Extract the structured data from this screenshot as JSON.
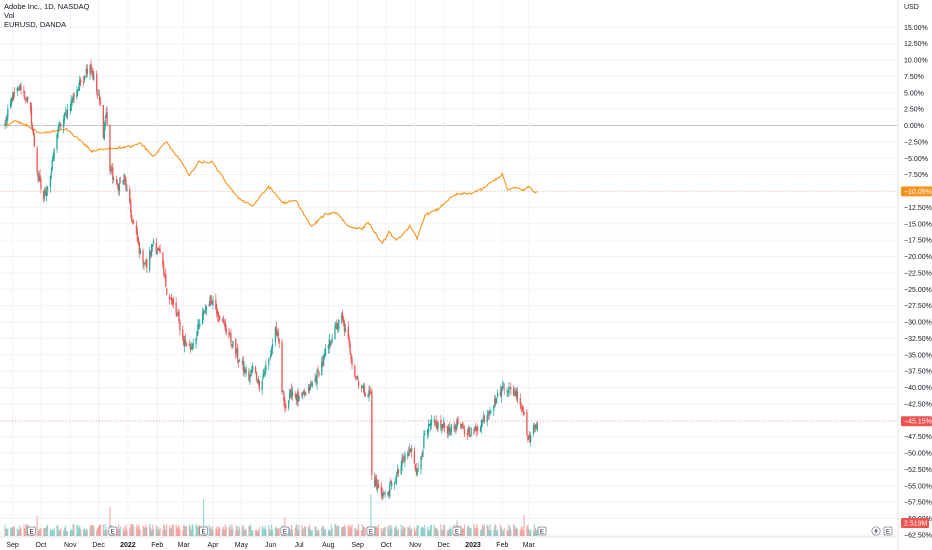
{
  "legend": {
    "line1": "Adobe Inc., 1D, NASDAQ",
    "line2": "Vol",
    "line3": "EURUSD, DANDA"
  },
  "currency": "USD",
  "colors": {
    "up": "#26a69a",
    "down": "#ef5350",
    "compare": "#f7941d",
    "grid": "#f0f3fa",
    "zero": "#b2b5be",
    "axis_text": "#131722"
  },
  "chart_data": {
    "type": "candlestick",
    "title": "Adobe Inc., 1D, NASDAQ",
    "ylabel": "",
    "y_scale": "percent change",
    "ylim": [
      -62.5,
      17.5
    ],
    "y_ticks": [
      "15.00%",
      "12.50%",
      "10.00%",
      "7.50%",
      "5.00%",
      "2.50%",
      "0.00%",
      "−2.50%",
      "−5.00%",
      "−7.50%",
      "−10.00%",
      "−12.50%",
      "−15.00%",
      "−17.50%",
      "−20.00%",
      "−22.50%",
      "−25.00%",
      "−27.50%",
      "−30.00%",
      "−32.50%",
      "−35.00%",
      "−37.50%",
      "−40.00%",
      "−42.50%",
      "−45.00%",
      "−47.50%",
      "−50.00%",
      "−52.50%",
      "−55.00%",
      "−57.50%",
      "−60.00%",
      "−62.50%"
    ],
    "x_labels": [
      {
        "text": "Sep",
        "bold": false
      },
      {
        "text": "Oct",
        "bold": false
      },
      {
        "text": "Nov",
        "bold": false
      },
      {
        "text": "Dec",
        "bold": false
      },
      {
        "text": "2022",
        "bold": true
      },
      {
        "text": "Feb",
        "bold": false
      },
      {
        "text": "Mar",
        "bold": false
      },
      {
        "text": "Apr",
        "bold": false
      },
      {
        "text": "May",
        "bold": false
      },
      {
        "text": "Jun",
        "bold": false
      },
      {
        "text": "Jul",
        "bold": false
      },
      {
        "text": "Aug",
        "bold": false
      },
      {
        "text": "Sep",
        "bold": false
      },
      {
        "text": "Oct",
        "bold": false
      },
      {
        "text": "Nov",
        "bold": false
      },
      {
        "text": "Dec",
        "bold": false
      },
      {
        "text": "2023",
        "bold": true
      },
      {
        "text": "Feb",
        "bold": false
      },
      {
        "text": "Mar",
        "bold": false
      }
    ],
    "series": [
      {
        "name": "Adobe Inc.",
        "kind": "candlestick",
        "last_label": "−45.15%",
        "anchors": [
          {
            "date": "2021-08-24",
            "value": 0.0
          },
          {
            "date": "2021-08-31",
            "value": 4.0
          },
          {
            "date": "2021-09-10",
            "value": 6.0
          },
          {
            "date": "2021-09-20",
            "value": 2.0
          },
          {
            "date": "2021-09-28",
            "value": -8.0
          },
          {
            "date": "2021-10-04",
            "value": -11.0
          },
          {
            "date": "2021-10-12",
            "value": -7.0
          },
          {
            "date": "2021-10-18",
            "value": -1.0
          },
          {
            "date": "2021-10-25",
            "value": 1.0
          },
          {
            "date": "2021-11-05",
            "value": 4.5
          },
          {
            "date": "2021-11-15",
            "value": 7.5
          },
          {
            "date": "2021-11-22",
            "value": 9.5
          },
          {
            "date": "2021-11-26",
            "value": 7.0
          },
          {
            "date": "2021-12-03",
            "value": 3.0
          },
          {
            "date": "2021-12-06",
            "value": -1.0
          },
          {
            "date": "2021-12-09",
            "value": 2.0
          },
          {
            "date": "2021-12-13",
            "value": -6.5
          },
          {
            "date": "2021-12-20",
            "value": -9.5
          },
          {
            "date": "2021-12-28",
            "value": -8.0
          },
          {
            "date": "2022-01-05",
            "value": -14.0
          },
          {
            "date": "2022-01-14",
            "value": -19.5
          },
          {
            "date": "2022-01-21",
            "value": -21.5
          },
          {
            "date": "2022-01-28",
            "value": -17.5
          },
          {
            "date": "2022-02-04",
            "value": -20.0
          },
          {
            "date": "2022-02-11",
            "value": -25.0
          },
          {
            "date": "2022-02-22",
            "value": -29.0
          },
          {
            "date": "2022-03-01",
            "value": -33.0
          },
          {
            "date": "2022-03-08",
            "value": -34.0
          },
          {
            "date": "2022-03-15",
            "value": -31.5
          },
          {
            "date": "2022-03-25",
            "value": -27.5
          },
          {
            "date": "2022-03-31",
            "value": -26.5
          },
          {
            "date": "2022-04-06",
            "value": -28.5
          },
          {
            "date": "2022-04-14",
            "value": -31.0
          },
          {
            "date": "2022-04-22",
            "value": -33.5
          },
          {
            "date": "2022-04-29",
            "value": -36.0
          },
          {
            "date": "2022-05-09",
            "value": -38.5
          },
          {
            "date": "2022-05-13",
            "value": -37.0
          },
          {
            "date": "2022-05-20",
            "value": -39.5
          },
          {
            "date": "2022-05-31",
            "value": -35.5
          },
          {
            "date": "2022-06-06",
            "value": -31.0
          },
          {
            "date": "2022-06-10",
            "value": -33.5
          },
          {
            "date": "2022-06-13",
            "value": -40.5
          },
          {
            "date": "2022-06-17",
            "value": -43.0
          },
          {
            "date": "2022-06-24",
            "value": -40.5
          },
          {
            "date": "2022-07-01",
            "value": -42.0
          },
          {
            "date": "2022-07-11",
            "value": -40.5
          },
          {
            "date": "2022-07-19",
            "value": -38.5
          },
          {
            "date": "2022-07-26",
            "value": -36.0
          },
          {
            "date": "2022-08-05",
            "value": -32.0
          },
          {
            "date": "2022-08-15",
            "value": -29.5
          },
          {
            "date": "2022-08-22",
            "value": -33.0
          },
          {
            "date": "2022-08-29",
            "value": -38.0
          },
          {
            "date": "2022-09-08",
            "value": -40.5
          },
          {
            "date": "2022-09-15",
            "value": -41.0
          },
          {
            "date": "2022-09-16",
            "value": -53.5
          },
          {
            "date": "2022-09-23",
            "value": -55.5
          },
          {
            "date": "2022-09-30",
            "value": -56.5
          },
          {
            "date": "2022-10-07",
            "value": -55.0
          },
          {
            "date": "2022-10-14",
            "value": -53.0
          },
          {
            "date": "2022-10-21",
            "value": -50.5
          },
          {
            "date": "2022-10-28",
            "value": -49.5
          },
          {
            "date": "2022-11-03",
            "value": -53.0
          },
          {
            "date": "2022-11-11",
            "value": -47.5
          },
          {
            "date": "2022-11-18",
            "value": -45.5
          },
          {
            "date": "2022-11-30",
            "value": -46.0
          },
          {
            "date": "2022-12-09",
            "value": -46.5
          },
          {
            "date": "2022-12-16",
            "value": -45.5
          },
          {
            "date": "2022-12-23",
            "value": -47.0
          },
          {
            "date": "2023-01-04",
            "value": -46.5
          },
          {
            "date": "2023-01-13",
            "value": -44.5
          },
          {
            "date": "2023-01-20",
            "value": -43.0
          },
          {
            "date": "2023-01-27",
            "value": -41.5
          },
          {
            "date": "2023-02-03",
            "value": -39.5
          },
          {
            "date": "2023-02-09",
            "value": -40.5
          },
          {
            "date": "2023-02-17",
            "value": -41.0
          },
          {
            "date": "2023-02-24",
            "value": -44.0
          },
          {
            "date": "2023-03-01",
            "value": -48.0
          },
          {
            "date": "2023-03-06",
            "value": -46.5
          },
          {
            "date": "2023-03-10",
            "value": -45.15
          }
        ]
      },
      {
        "name": "EURUSD",
        "kind": "line",
        "last_label": "−10.05%",
        "anchors": [
          {
            "date": "2021-08-24",
            "value": 0.0
          },
          {
            "date": "2021-09-03",
            "value": 0.6
          },
          {
            "date": "2021-09-17",
            "value": 0.0
          },
          {
            "date": "2021-09-30",
            "value": -1.3
          },
          {
            "date": "2021-10-14",
            "value": -0.9
          },
          {
            "date": "2021-10-28",
            "value": -0.6
          },
          {
            "date": "2021-11-12",
            "value": -2.3
          },
          {
            "date": "2021-11-24",
            "value": -4.0
          },
          {
            "date": "2021-12-08",
            "value": -3.5
          },
          {
            "date": "2021-12-22",
            "value": -3.4
          },
          {
            "date": "2022-01-07",
            "value": -3.2
          },
          {
            "date": "2022-01-14",
            "value": -2.6
          },
          {
            "date": "2022-01-28",
            "value": -4.8
          },
          {
            "date": "2022-02-10",
            "value": -2.5
          },
          {
            "date": "2022-02-24",
            "value": -5.0
          },
          {
            "date": "2022-03-07",
            "value": -7.6
          },
          {
            "date": "2022-03-17",
            "value": -5.6
          },
          {
            "date": "2022-03-31",
            "value": -5.6
          },
          {
            "date": "2022-04-14",
            "value": -8.5
          },
          {
            "date": "2022-04-27",
            "value": -11.0
          },
          {
            "date": "2022-05-13",
            "value": -12.3
          },
          {
            "date": "2022-05-30",
            "value": -9.3
          },
          {
            "date": "2022-06-14",
            "value": -11.8
          },
          {
            "date": "2022-06-28",
            "value": -11.5
          },
          {
            "date": "2022-07-14",
            "value": -15.5
          },
          {
            "date": "2022-07-29",
            "value": -13.5
          },
          {
            "date": "2022-08-10",
            "value": -13.3
          },
          {
            "date": "2022-08-22",
            "value": -15.4
          },
          {
            "date": "2022-09-06",
            "value": -15.8
          },
          {
            "date": "2022-09-12",
            "value": -14.7
          },
          {
            "date": "2022-09-27",
            "value": -18.1
          },
          {
            "date": "2022-10-04",
            "value": -16.2
          },
          {
            "date": "2022-10-12",
            "value": -17.6
          },
          {
            "date": "2022-10-26",
            "value": -15.4
          },
          {
            "date": "2022-11-03",
            "value": -17.3
          },
          {
            "date": "2022-11-11",
            "value": -13.7
          },
          {
            "date": "2022-11-25",
            "value": -12.8
          },
          {
            "date": "2022-12-05",
            "value": -11.4
          },
          {
            "date": "2022-12-15",
            "value": -10.5
          },
          {
            "date": "2022-12-28",
            "value": -10.4
          },
          {
            "date": "2023-01-10",
            "value": -9.8
          },
          {
            "date": "2023-01-20",
            "value": -8.7
          },
          {
            "date": "2023-02-01",
            "value": -7.5
          },
          {
            "date": "2023-02-07",
            "value": -9.9
          },
          {
            "date": "2023-02-15",
            "value": -9.5
          },
          {
            "date": "2023-02-24",
            "value": -9.9
          },
          {
            "date": "2023-03-01",
            "value": -9.3
          },
          {
            "date": "2023-03-07",
            "value": -10.2
          },
          {
            "date": "2023-03-10",
            "value": -10.05
          }
        ]
      },
      {
        "name": "Vol",
        "kind": "histogram",
        "last_label": "2.519M",
        "spikes": [
          {
            "date": "2021-09-27",
            "millions": 9.0
          },
          {
            "date": "2021-12-13",
            "millions": 13.0
          },
          {
            "date": "2022-03-22",
            "millions": 16.5
          },
          {
            "date": "2022-06-16",
            "millions": 8.5
          },
          {
            "date": "2022-09-15",
            "millions": 18.5
          },
          {
            "date": "2022-12-15",
            "millions": 7.0
          },
          {
            "date": "2023-02-24",
            "millions": 9.5
          }
        ],
        "earnings_markers": [
          "2021-09-21",
          "2021-12-16",
          "2022-03-22",
          "2022-06-16",
          "2022-09-15",
          "2022-12-15",
          "2023-03-15"
        ]
      }
    ]
  }
}
